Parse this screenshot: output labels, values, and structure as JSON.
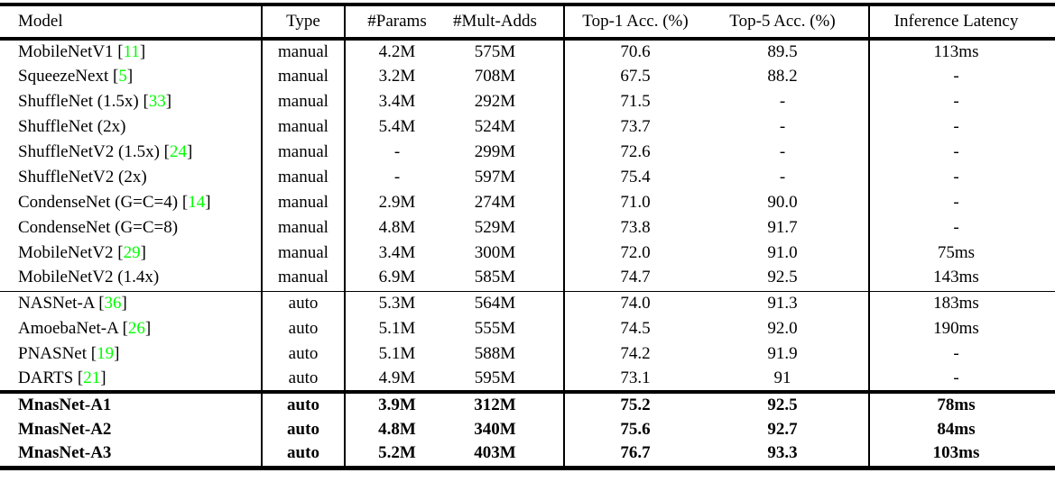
{
  "colors": {
    "citation_link": "#00ff00",
    "text": "#000000",
    "rules": "#000000",
    "background": "#ffffff"
  },
  "table": {
    "columns": [
      {
        "label": "Model"
      },
      {
        "label": "Type"
      },
      {
        "label": "#Params"
      },
      {
        "label": "#Mult-Adds"
      },
      {
        "label": "Top-1 Acc. (%)"
      },
      {
        "label": "Top-5 Acc. (%)"
      },
      {
        "label": "Inference Latency"
      }
    ],
    "sections": [
      {
        "name": "manual-models",
        "bold": false,
        "rows": [
          {
            "model": "MobileNetV1",
            "citation": "11",
            "type": "manual",
            "params": "4.2M",
            "mult_adds": "575M",
            "top1": "70.6",
            "top5": "89.5",
            "latency": "113ms"
          },
          {
            "model": "SqueezeNext",
            "citation": "5",
            "type": "manual",
            "params": "3.2M",
            "mult_adds": "708M",
            "top1": "67.5",
            "top5": "88.2",
            "latency": "-"
          },
          {
            "model": "ShuffleNet (1.5x)",
            "citation": "33",
            "type": "manual",
            "params": "3.4M",
            "mult_adds": "292M",
            "top1": "71.5",
            "top5": "-",
            "latency": "-"
          },
          {
            "model": "ShuffleNet (2x)",
            "citation": "",
            "type": "manual",
            "params": "5.4M",
            "mult_adds": "524M",
            "top1": "73.7",
            "top5": "-",
            "latency": "-"
          },
          {
            "model": "ShuffleNetV2 (1.5x)",
            "citation": "24",
            "type": "manual",
            "params": "-",
            "mult_adds": "299M",
            "top1": "72.6",
            "top5": "-",
            "latency": "-"
          },
          {
            "model": "ShuffleNetV2 (2x)",
            "citation": "",
            "type": "manual",
            "params": "-",
            "mult_adds": "597M",
            "top1": "75.4",
            "top5": "-",
            "latency": "-"
          },
          {
            "model": "CondenseNet (G=C=4)",
            "citation": "14",
            "type": "manual",
            "params": "2.9M",
            "mult_adds": "274M",
            "top1": "71.0",
            "top5": "90.0",
            "latency": "-"
          },
          {
            "model": "CondenseNet (G=C=8)",
            "citation": "",
            "type": "manual",
            "params": "4.8M",
            "mult_adds": "529M",
            "top1": "73.8",
            "top5": "91.7",
            "latency": "-"
          },
          {
            "model": "MobileNetV2",
            "citation": "29",
            "type": "manual",
            "params": "3.4M",
            "mult_adds": "300M",
            "top1": "72.0",
            "top5": "91.0",
            "latency": "75ms"
          },
          {
            "model": "MobileNetV2 (1.4x)",
            "citation": "",
            "type": "manual",
            "params": "6.9M",
            "mult_adds": "585M",
            "top1": "74.7",
            "top5": "92.5",
            "latency": "143ms"
          }
        ]
      },
      {
        "name": "auto-models",
        "bold": false,
        "rows": [
          {
            "model": "NASNet-A",
            "citation": "36",
            "type": "auto",
            "params": "5.3M",
            "mult_adds": "564M",
            "top1": "74.0",
            "top5": "91.3",
            "latency": "183ms"
          },
          {
            "model": "AmoebaNet-A",
            "citation": "26",
            "type": "auto",
            "params": "5.1M",
            "mult_adds": "555M",
            "top1": "74.5",
            "top5": "92.0",
            "latency": "190ms"
          },
          {
            "model": "PNASNet",
            "citation": "19",
            "type": "auto",
            "params": "5.1M",
            "mult_adds": "588M",
            "top1": "74.2",
            "top5": "91.9",
            "latency": "-"
          },
          {
            "model": "DARTS",
            "citation": "21",
            "type": "auto",
            "params": "4.9M",
            "mult_adds": "595M",
            "top1": "73.1",
            "top5": "91",
            "latency": "-"
          }
        ]
      },
      {
        "name": "mnasnet-models",
        "bold": true,
        "rows": [
          {
            "model": "MnasNet-A1",
            "citation": "",
            "type": "auto",
            "params": "3.9M",
            "mult_adds": "312M",
            "top1": "75.2",
            "top5": "92.5",
            "latency": "78ms"
          },
          {
            "model": "MnasNet-A2",
            "citation": "",
            "type": "auto",
            "params": "4.8M",
            "mult_adds": "340M",
            "top1": "75.6",
            "top5": "92.7",
            "latency": "84ms"
          },
          {
            "model": "MnasNet-A3",
            "citation": "",
            "type": "auto",
            "params": "5.2M",
            "mult_adds": "403M",
            "top1": "76.7",
            "top5": "93.3",
            "latency": "103ms"
          }
        ]
      }
    ]
  }
}
